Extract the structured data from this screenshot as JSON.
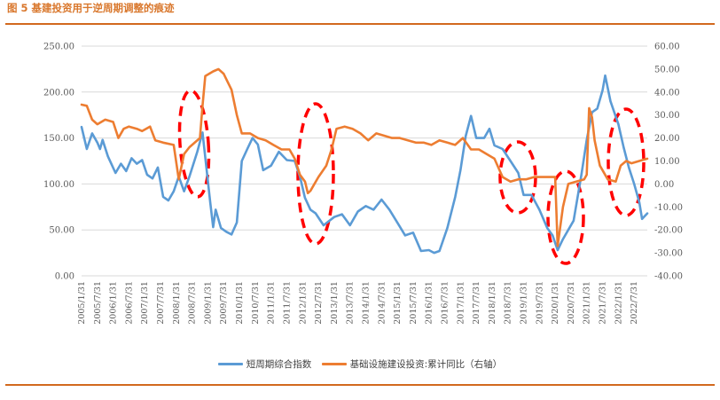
{
  "figure_title": "图 5  基建投资用于逆周期调整的痕迹",
  "colors": {
    "series1": "#5b9bd5",
    "series2": "#ed7d31",
    "ellipse": "#ff0000",
    "rule": "#d2691e",
    "title": "#d9772c"
  },
  "chart_data": {
    "type": "line",
    "grid": "horizontal",
    "legend_position": "bottom",
    "x_start": "2005/1/31",
    "x_end": "2022/12/31",
    "x_tick_labels": [
      "2005/1/31",
      "2005/7/31",
      "2006/1/31",
      "2006/7/31",
      "2007/1/31",
      "2007/7/31",
      "2008/1/31",
      "2008/7/31",
      "2009/1/31",
      "2009/7/31",
      "2010/1/31",
      "2010/7/31",
      "2011/1/31",
      "2011/7/31",
      "2012/1/31",
      "2012/7/31",
      "2013/1/31",
      "2013/7/31",
      "2014/1/31",
      "2014/7/31",
      "2015/1/31",
      "2015/7/31",
      "2016/1/31",
      "2016/7/31",
      "2017/1/31",
      "2017/7/31",
      "2018/1/31",
      "2018/7/31",
      "2019/1/31",
      "2019/7/31",
      "2020/1/31",
      "2020/7/31",
      "2021/1/31",
      "2021/7/31",
      "2022/1/31",
      "2022/7/31"
    ],
    "y_left": {
      "min": 0,
      "max": 250,
      "ticks": [
        "0.00",
        "50.00",
        "100.00",
        "150.00",
        "200.00",
        "250.00"
      ]
    },
    "y_right": {
      "min": -40,
      "max": 60,
      "ticks": [
        "-40.00",
        "-30.00",
        "-20.00",
        "-10.00",
        "0.00",
        "10.00",
        "20.00",
        "30.00",
        "40.00",
        "50.00",
        "60.00"
      ]
    },
    "series": [
      {
        "name": "短周期综合指数",
        "axis": "left",
        "points": [
          [
            "2005/1/31",
            162
          ],
          [
            "2005/3/31",
            138
          ],
          [
            "2005/5/31",
            155
          ],
          [
            "2005/7/31",
            145
          ],
          [
            "2005/8/31",
            138
          ],
          [
            "2005/9/31",
            148
          ],
          [
            "2005/11/31",
            130
          ],
          [
            "2006/2/28",
            112
          ],
          [
            "2006/4/30",
            122
          ],
          [
            "2006/6/30",
            114
          ],
          [
            "2006/8/31",
            128
          ],
          [
            "2006/10/31",
            122
          ],
          [
            "2006/12/31",
            126
          ],
          [
            "2007/2/28",
            110
          ],
          [
            "2007/4/30",
            106
          ],
          [
            "2007/6/30",
            118
          ],
          [
            "2007/8/31",
            86
          ],
          [
            "2007/10/31",
            82
          ],
          [
            "2007/12/31",
            92
          ],
          [
            "2008/2/29",
            108
          ],
          [
            "2008/4/30",
            92
          ],
          [
            "2008/6/30",
            108
          ],
          [
            "2008/9/30",
            135
          ],
          [
            "2008/11/30",
            156
          ],
          [
            "2009/2/28",
            80
          ],
          [
            "2009/3/31",
            53
          ],
          [
            "2009/4/30",
            72
          ],
          [
            "2009/6/30",
            52
          ],
          [
            "2009/8/31",
            48
          ],
          [
            "2009/10/31",
            45
          ],
          [
            "2009/12/31",
            58
          ],
          [
            "2010/2/28",
            125
          ],
          [
            "2010/4/30",
            138
          ],
          [
            "2010/6/30",
            150
          ],
          [
            "2010/8/31",
            143
          ],
          [
            "2010/10/31",
            115
          ],
          [
            "2011/1/31",
            120
          ],
          [
            "2011/4/30",
            135
          ],
          [
            "2011/7/31",
            126
          ],
          [
            "2011/10/31",
            125
          ],
          [
            "2011/12/31",
            108
          ],
          [
            "2012/2/28",
            85
          ],
          [
            "2012/4/30",
            72
          ],
          [
            "2012/6/30",
            68
          ],
          [
            "2012/9/30",
            55
          ],
          [
            "2013/1/31",
            64
          ],
          [
            "2013/4/30",
            67
          ],
          [
            "2013/7/31",
            55
          ],
          [
            "2013/10/31",
            70
          ],
          [
            "2014/1/31",
            76
          ],
          [
            "2014/4/30",
            72
          ],
          [
            "2014/7/31",
            83
          ],
          [
            "2014/10/31",
            72
          ],
          [
            "2015/1/31",
            58
          ],
          [
            "2015/4/30",
            44
          ],
          [
            "2015/7/31",
            47
          ],
          [
            "2015/10/31",
            27
          ],
          [
            "2016/1/31",
            28
          ],
          [
            "2016/3/31",
            25
          ],
          [
            "2016/5/31",
            27
          ],
          [
            "2016/8/31",
            52
          ],
          [
            "2016/11/31",
            86
          ],
          [
            "2017/1/31",
            115
          ],
          [
            "2017/3/31",
            152
          ],
          [
            "2017/5/31",
            174
          ],
          [
            "2017/7/31",
            150
          ],
          [
            "2017/10/31",
            150
          ],
          [
            "2017/12/31",
            160
          ],
          [
            "2018/2/28",
            142
          ],
          [
            "2018/5/31",
            138
          ],
          [
            "2018/8/31",
            125
          ],
          [
            "2018/11/30",
            112
          ],
          [
            "2019/1/31",
            88
          ],
          [
            "2019/4/30",
            88
          ],
          [
            "2019/7/31",
            72
          ],
          [
            "2019/10/31",
            52
          ],
          [
            "2019/12/31",
            44
          ],
          [
            "2020/2/29",
            28
          ],
          [
            "2020/4/30",
            40
          ],
          [
            "2020/6/30",
            50
          ],
          [
            "2020/8/31",
            60
          ],
          [
            "2020/11/30",
            110
          ],
          [
            "2021/1/31",
            148
          ],
          [
            "2021/3/31",
            178
          ],
          [
            "2021/5/31",
            182
          ],
          [
            "2021/7/31",
            202
          ],
          [
            "2021/8/31",
            218
          ],
          [
            "2021/10/31",
            190
          ],
          [
            "2022/1/31",
            165
          ],
          [
            "2022/3/31",
            140
          ],
          [
            "2022/5/31",
            118
          ],
          [
            "2022/7/31",
            100
          ],
          [
            "2022/9/30",
            80
          ],
          [
            "2022/10/31",
            62
          ],
          [
            "2022/12/31",
            68
          ]
        ]
      },
      {
        "name": "基础设施建设投资:累计同比（右轴）",
        "axis": "right",
        "points": [
          [
            "2005/1/31",
            34.5
          ],
          [
            "2005/3/31",
            34
          ],
          [
            "2005/5/31",
            28
          ],
          [
            "2005/7/31",
            26
          ],
          [
            "2005/10/31",
            28
          ],
          [
            "2006/1/31",
            27
          ],
          [
            "2006/3/31",
            20
          ],
          [
            "2006/5/31",
            24
          ],
          [
            "2006/7/31",
            25
          ],
          [
            "2006/10/31",
            24
          ],
          [
            "2006/12/31",
            23
          ],
          [
            "2007/3/31",
            25
          ],
          [
            "2007/5/31",
            19
          ],
          [
            "2007/8/31",
            18
          ],
          [
            "2007/12/31",
            17
          ],
          [
            "2008/2/29",
            2
          ],
          [
            "2008/4/30",
            13
          ],
          [
            "2008/6/30",
            16
          ],
          [
            "2008/10/31",
            20
          ],
          [
            "2008/11/30",
            34
          ],
          [
            "2008/12/31",
            47
          ],
          [
            "2009/3/31",
            49
          ],
          [
            "2009/5/31",
            50
          ],
          [
            "2009/7/31",
            48
          ],
          [
            "2009/10/31",
            41
          ],
          [
            "2009/12/31",
            30
          ],
          [
            "2010/2/28",
            22
          ],
          [
            "2010/5/31",
            22
          ],
          [
            "2010/8/31",
            20
          ],
          [
            "2010/11/30",
            19
          ],
          [
            "2011/2/28",
            17
          ],
          [
            "2011/5/31",
            15
          ],
          [
            "2011/8/31",
            15
          ],
          [
            "2011/10/31",
            11
          ],
          [
            "2011/12/31",
            4
          ],
          [
            "2012/2/29",
            1
          ],
          [
            "2012/3/31",
            -4
          ],
          [
            "2012/4/30",
            -3
          ],
          [
            "2012/7/31",
            3
          ],
          [
            "2012/10/31",
            8
          ],
          [
            "2012/12/31",
            15
          ],
          [
            "2013/2/28",
            24
          ],
          [
            "2013/5/31",
            25
          ],
          [
            "2013/8/31",
            24
          ],
          [
            "2013/11/30",
            22
          ],
          [
            "2014/2/28",
            19
          ],
          [
            "2014/5/31",
            22
          ],
          [
            "2014/8/31",
            21
          ],
          [
            "2014/11/30",
            20
          ],
          [
            "2015/2/28",
            20
          ],
          [
            "2015/5/31",
            19
          ],
          [
            "2015/8/31",
            18
          ],
          [
            "2015/11/30",
            18
          ],
          [
            "2016/2/29",
            17
          ],
          [
            "2016/5/31",
            19
          ],
          [
            "2016/8/31",
            18
          ],
          [
            "2016/11/30",
            17
          ],
          [
            "2017/2/28",
            20
          ],
          [
            "2017/5/31",
            15
          ],
          [
            "2017/8/31",
            15
          ],
          [
            "2017/11/30",
            13
          ],
          [
            "2018/2/28",
            11
          ],
          [
            "2018/5/31",
            3
          ],
          [
            "2018/8/31",
            1
          ],
          [
            "2018/11/30",
            2
          ],
          [
            "2019/2/28",
            2
          ],
          [
            "2019/5/31",
            3
          ],
          [
            "2019/8/31",
            3
          ],
          [
            "2019/11/30",
            3
          ],
          [
            "2020/1/31",
            3
          ],
          [
            "2020/2/29",
            -27
          ],
          [
            "2020/4/30",
            -10
          ],
          [
            "2020/6/30",
            0
          ],
          [
            "2020/9/30",
            1
          ],
          [
            "2020/12/31",
            2
          ],
          [
            "2021/1/31",
            4
          ],
          [
            "2021/2/28",
            33
          ],
          [
            "2021/3/31",
            29
          ],
          [
            "2021/4/30",
            19
          ],
          [
            "2021/6/30",
            8
          ],
          [
            "2021/9/30",
            2
          ],
          [
            "2021/12/31",
            1
          ],
          [
            "2022/2/28",
            8
          ],
          [
            "2022/4/30",
            10
          ],
          [
            "2022/6/30",
            9
          ],
          [
            "2022/9/30",
            10
          ],
          [
            "2022/12/31",
            11
          ]
        ]
      }
    ]
  },
  "legend": {
    "series1_label": "短周期综合指数",
    "series2_label": "基础设施建设投资:累计同比（右轴）"
  }
}
